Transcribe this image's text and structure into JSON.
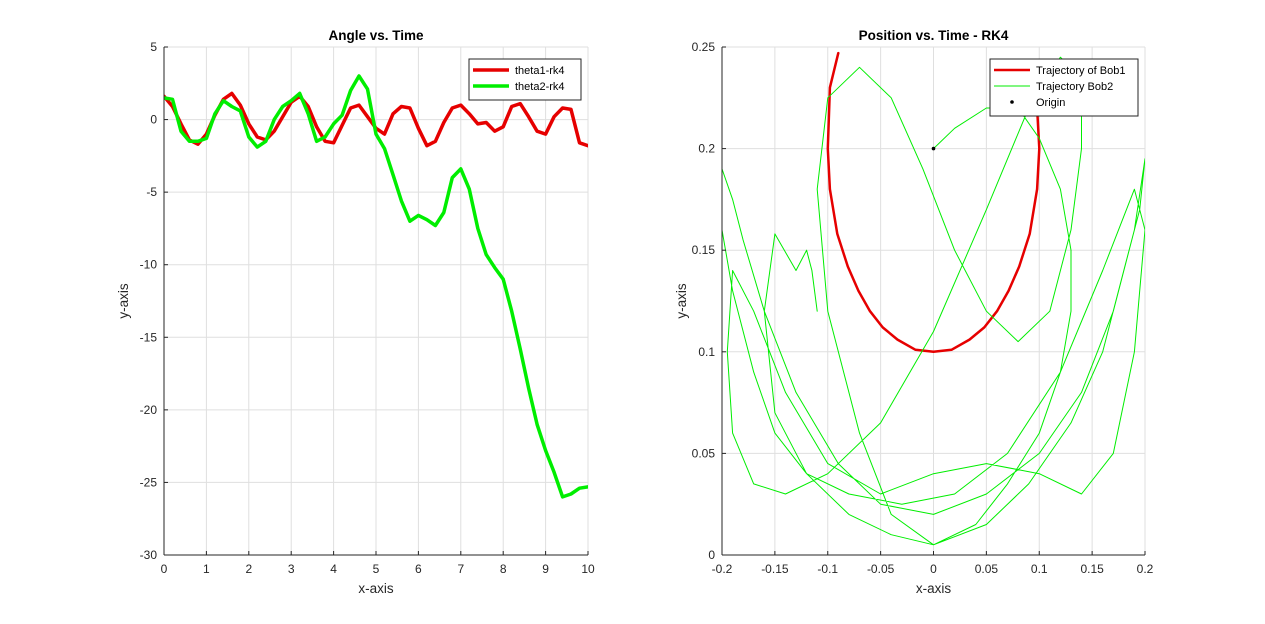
{
  "colors": {
    "red": "#e60000",
    "green": "#00ee00",
    "grid": "#dfdfdf",
    "axis": "#262626"
  },
  "chart_data": [
    {
      "type": "line",
      "title": "Angle vs. Time",
      "xlabel": "x-axis",
      "ylabel": "y-axis",
      "xlim": [
        0,
        10
      ],
      "ylim": [
        -30,
        5
      ],
      "xticks": [
        0,
        1,
        2,
        3,
        4,
        5,
        6,
        7,
        8,
        9,
        10
      ],
      "yticks": [
        5,
        0,
        -5,
        -10,
        -15,
        -20,
        -25,
        -30
      ],
      "grid": true,
      "legend_position": "top-right",
      "series": [
        {
          "name": "theta1-rk4",
          "color": "#e60000",
          "width": 3.5,
          "x": [
            0,
            0.2,
            0.4,
            0.6,
            0.8,
            1.0,
            1.2,
            1.4,
            1.6,
            1.8,
            2.0,
            2.2,
            2.4,
            2.6,
            2.8,
            3.0,
            3.2,
            3.4,
            3.6,
            3.8,
            4.0,
            4.2,
            4.4,
            4.6,
            4.8,
            5.0,
            5.2,
            5.4,
            5.6,
            5.8,
            6.0,
            6.2,
            6.4,
            6.6,
            6.8,
            7.0,
            7.2,
            7.4,
            7.6,
            7.8,
            8.0,
            8.2,
            8.4,
            8.6,
            8.8,
            9.0,
            9.2,
            9.4,
            9.6,
            9.8,
            10.0
          ],
          "y": [
            1.6,
            0.9,
            -0.3,
            -1.4,
            -1.7,
            -1.0,
            0.3,
            1.4,
            1.8,
            1.0,
            -0.3,
            -1.2,
            -1.4,
            -0.8,
            0.2,
            1.2,
            1.6,
            0.9,
            -0.5,
            -1.5,
            -1.6,
            -0.4,
            0.8,
            1.0,
            0.2,
            -0.6,
            -1.0,
            0.4,
            0.9,
            0.8,
            -0.6,
            -1.8,
            -1.5,
            -0.2,
            0.8,
            1.0,
            0.4,
            -0.3,
            -0.2,
            -0.8,
            -0.5,
            0.9,
            1.1,
            0.2,
            -0.8,
            -1.0,
            0.2,
            0.8,
            0.7,
            -1.6,
            -1.8
          ]
        },
        {
          "name": "theta2-rk4",
          "color": "#00ee00",
          "width": 3.5,
          "x": [
            0,
            0.2,
            0.4,
            0.6,
            0.8,
            1.0,
            1.2,
            1.4,
            1.6,
            1.8,
            2.0,
            2.2,
            2.4,
            2.6,
            2.8,
            3.0,
            3.2,
            3.4,
            3.6,
            3.8,
            4.0,
            4.2,
            4.4,
            4.6,
            4.8,
            5.0,
            5.2,
            5.4,
            5.6,
            5.8,
            6.0,
            6.2,
            6.4,
            6.6,
            6.8,
            7.0,
            7.2,
            7.4,
            7.6,
            7.8,
            8.0,
            8.2,
            8.4,
            8.6,
            8.8,
            9.0,
            9.2,
            9.4,
            9.6,
            9.8,
            10.0
          ],
          "y": [
            1.5,
            1.4,
            -0.8,
            -1.5,
            -1.5,
            -1.3,
            0.4,
            1.3,
            0.9,
            0.6,
            -1.2,
            -1.9,
            -1.5,
            0.0,
            0.9,
            1.3,
            1.8,
            0.4,
            -1.5,
            -1.2,
            -0.3,
            0.3,
            2.0,
            3.0,
            2.1,
            -1.0,
            -2.0,
            -3.8,
            -5.6,
            -7.0,
            -6.6,
            -6.9,
            -7.3,
            -6.4,
            -4.0,
            -3.4,
            -4.8,
            -7.5,
            -9.3,
            -10.2,
            -11.0,
            -13.2,
            -15.8,
            -18.5,
            -21.0,
            -22.8,
            -24.3,
            -26.0,
            -25.8,
            -25.4,
            -25.3
          ]
        }
      ]
    },
    {
      "type": "line",
      "title": "Position vs. Time - RK4",
      "xlabel": "x-axis",
      "ylabel": "y-axis",
      "xlim": [
        -0.2,
        0.2
      ],
      "ylim": [
        0,
        0.25
      ],
      "xticks": [
        -0.2,
        -0.15,
        -0.1,
        -0.05,
        0,
        0.05,
        0.1,
        0.15,
        0.2
      ],
      "yticks": [
        0.25,
        0.2,
        0.15,
        0.1,
        0.05,
        0
      ],
      "grid": true,
      "legend_position": "top-right",
      "series": [
        {
          "name": "Trajectory of Bob1",
          "type": "line",
          "color": "#e60000",
          "width": 2.5,
          "x": [
            -0.09,
            -0.098,
            -0.1,
            -0.098,
            -0.091,
            -0.081,
            -0.071,
            -0.06,
            -0.048,
            -0.034,
            -0.017,
            0.0,
            0.017,
            0.034,
            0.048,
            0.06,
            0.071,
            0.081,
            0.091,
            0.098,
            0.1,
            0.098
          ],
          "y": [
            0.247,
            0.23,
            0.2,
            0.18,
            0.158,
            0.142,
            0.13,
            0.12,
            0.112,
            0.106,
            0.101,
            0.1,
            0.101,
            0.106,
            0.112,
            0.12,
            0.13,
            0.142,
            0.158,
            0.18,
            0.2,
            0.22
          ]
        },
        {
          "name": "Trajectory Bob2",
          "type": "line",
          "color": "#00ee00",
          "width": 1,
          "x": [
            0.0,
            0.02,
            0.05,
            0.08,
            0.1,
            0.12,
            0.13,
            0.13,
            0.12,
            0.1,
            0.07,
            0.04,
            0.0,
            -0.04,
            -0.08,
            -0.12,
            -0.15,
            -0.17,
            -0.19,
            -0.2,
            -0.2,
            -0.19,
            -0.18,
            -0.16,
            -0.13,
            -0.09,
            -0.05,
            0.0,
            0.05,
            0.1,
            0.14,
            0.17,
            0.19,
            0.2,
            0.195,
            0.18,
            0.16,
            0.13,
            0.09,
            0.05,
            0.0,
            -0.04,
            -0.07,
            -0.1,
            -0.11,
            -0.1,
            -0.07,
            -0.04,
            -0.01,
            0.02,
            0.05,
            0.08,
            0.11,
            0.13,
            0.14,
            0.14,
            0.12,
            0.09,
            0.05,
            0.0,
            -0.05,
            -0.1,
            -0.14,
            -0.17,
            -0.19,
            -0.195,
            -0.19,
            -0.17,
            -0.14,
            -0.1,
            -0.05,
            0.0,
            0.05,
            0.1,
            0.14,
            0.17,
            0.19,
            0.2,
            0.19,
            0.16,
            0.12,
            0.07,
            0.02,
            -0.03,
            -0.08,
            -0.12,
            -0.15,
            -0.16,
            -0.15,
            -0.13,
            -0.12,
            -0.115,
            -0.11
          ],
          "y": [
            0.2,
            0.21,
            0.22,
            0.22,
            0.205,
            0.18,
            0.15,
            0.12,
            0.09,
            0.06,
            0.035,
            0.015,
            0.005,
            0.01,
            0.02,
            0.04,
            0.06,
            0.09,
            0.13,
            0.16,
            0.19,
            0.175,
            0.155,
            0.12,
            0.08,
            0.045,
            0.025,
            0.02,
            0.03,
            0.05,
            0.08,
            0.12,
            0.16,
            0.195,
            0.17,
            0.14,
            0.1,
            0.065,
            0.035,
            0.015,
            0.005,
            0.02,
            0.06,
            0.12,
            0.18,
            0.225,
            0.24,
            0.225,
            0.19,
            0.15,
            0.12,
            0.105,
            0.12,
            0.16,
            0.2,
            0.235,
            0.245,
            0.22,
            0.17,
            0.11,
            0.065,
            0.04,
            0.03,
            0.035,
            0.06,
            0.1,
            0.14,
            0.12,
            0.08,
            0.045,
            0.03,
            0.04,
            0.045,
            0.04,
            0.03,
            0.05,
            0.1,
            0.16,
            0.18,
            0.14,
            0.09,
            0.05,
            0.03,
            0.025,
            0.03,
            0.04,
            0.07,
            0.12,
            0.158,
            0.14,
            0.15,
            0.14,
            0.12
          ]
        },
        {
          "name": "Origin",
          "type": "point",
          "color": "#000000",
          "x": [
            0
          ],
          "y": [
            0.2
          ]
        }
      ]
    }
  ]
}
